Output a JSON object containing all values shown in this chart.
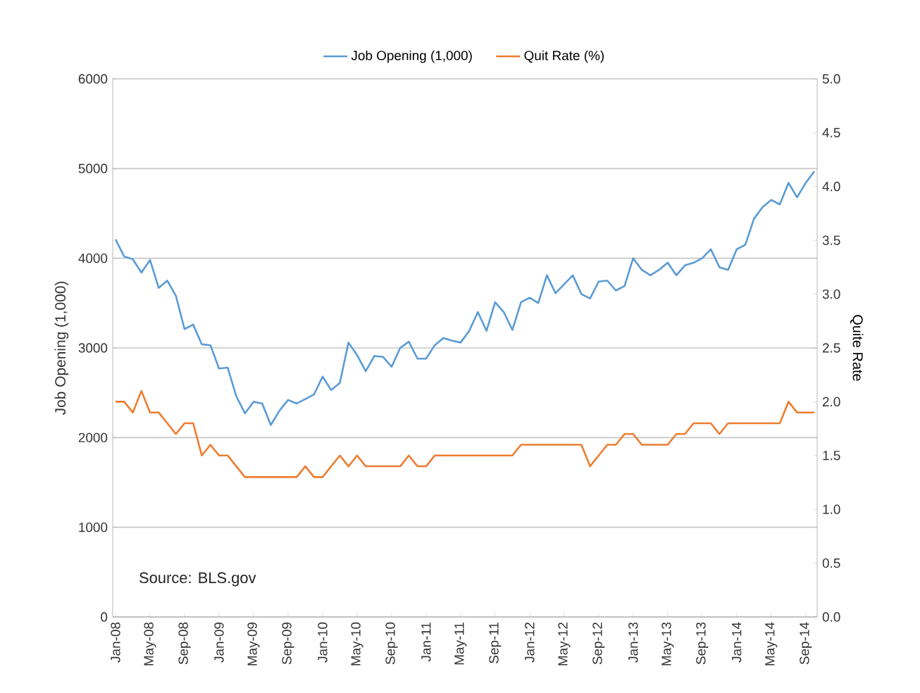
{
  "chart_data": {
    "type": "line",
    "categories": [
      "Jan-08",
      null,
      null,
      null,
      "May-08",
      null,
      null,
      null,
      "Sep-08",
      null,
      null,
      null,
      "Jan-09",
      null,
      null,
      null,
      "May-09",
      null,
      null,
      null,
      "Sep-09",
      null,
      null,
      null,
      "Jan-10",
      null,
      null,
      null,
      "May-10",
      null,
      null,
      null,
      "Sep-10",
      null,
      null,
      null,
      "Jan-11",
      null,
      null,
      null,
      "May-11",
      null,
      null,
      null,
      "Sep-11",
      null,
      null,
      null,
      "Jan-12",
      null,
      null,
      null,
      "May-12",
      null,
      null,
      null,
      "Sep-12",
      null,
      null,
      null,
      "Jan-13",
      null,
      null,
      null,
      "May-13",
      null,
      null,
      null,
      "Sep-13",
      null,
      null,
      null,
      "Jan-14",
      null,
      null,
      null,
      "May-14",
      null,
      null,
      null,
      "Sep-14",
      null
    ],
    "series": [
      {
        "name": "Job Opening (1,000)",
        "color": "#5b9bd5",
        "axis": "y",
        "values": [
          4210,
          4020,
          3990,
          3840,
          3980,
          3670,
          3750,
          3580,
          3210,
          3260,
          3040,
          3030,
          2770,
          2780,
          2460,
          2270,
          2400,
          2380,
          2140,
          2300,
          2420,
          2380,
          2430,
          2480,
          2680,
          2530,
          2610,
          3060,
          2920,
          2740,
          2910,
          2900,
          2790,
          3000,
          3070,
          2880,
          2880,
          3030,
          3110,
          3080,
          3060,
          3190,
          3400,
          3190,
          3510,
          3400,
          3200,
          3510,
          3560,
          3500,
          3810,
          3610,
          3710,
          3810,
          3600,
          3550,
          3740,
          3750,
          3640,
          3690,
          4000,
          3870,
          3810,
          3870,
          3950,
          3810,
          3920,
          3950,
          4000,
          4100,
          3900,
          3870,
          4100,
          4150,
          4440,
          4570,
          4650,
          4600,
          4840,
          4680,
          4840,
          4970
        ]
      },
      {
        "name": "Quit Rate (%)",
        "color": "#ed7d31",
        "axis": "y2",
        "values": [
          2.0,
          2.0,
          1.9,
          2.1,
          1.9,
          1.9,
          1.8,
          1.7,
          1.8,
          1.8,
          1.5,
          1.6,
          1.5,
          1.5,
          1.4,
          1.3,
          1.3,
          1.3,
          1.3,
          1.3,
          1.3,
          1.3,
          1.4,
          1.3,
          1.3,
          1.4,
          1.5,
          1.4,
          1.5,
          1.4,
          1.4,
          1.4,
          1.4,
          1.4,
          1.5,
          1.4,
          1.4,
          1.5,
          1.5,
          1.5,
          1.5,
          1.5,
          1.5,
          1.5,
          1.5,
          1.5,
          1.5,
          1.6,
          1.6,
          1.6,
          1.6,
          1.6,
          1.6,
          1.6,
          1.6,
          1.4,
          1.5,
          1.6,
          1.6,
          1.7,
          1.7,
          1.6,
          1.6,
          1.6,
          1.6,
          1.7,
          1.7,
          1.8,
          1.8,
          1.8,
          1.7,
          1.8,
          1.8,
          1.8,
          1.8,
          1.8,
          1.8,
          1.8,
          2.0,
          1.9,
          1.9,
          1.9
        ]
      }
    ],
    "ylabel": "Job Opening (1,000)",
    "y2label": "Quite Rate",
    "ylim": [
      0,
      6000
    ],
    "yticks": [
      0,
      1000,
      2000,
      3000,
      4000,
      5000,
      6000
    ],
    "y2lim": [
      0,
      5
    ],
    "y2ticks": [
      {
        "value": 0,
        "label": "0.0"
      },
      {
        "value": 0.5,
        "label": "0.5"
      },
      {
        "value": 1,
        "label": "1.0"
      },
      {
        "value": 1.5,
        "label": "1.5"
      },
      {
        "value": 2,
        "label": "2.0"
      },
      {
        "value": 2.5,
        "label": "2.5"
      },
      {
        "value": 3,
        "label": "3.0"
      },
      {
        "value": 3.5,
        "label": "3.5"
      },
      {
        "value": 4,
        "label": "4.0"
      },
      {
        "value": 4.5,
        "label": "4.5"
      },
      {
        "value": 5,
        "label": "5.0"
      }
    ],
    "annotations": [
      "Source: BLS.gov"
    ],
    "grid": "y",
    "legend": "top"
  }
}
